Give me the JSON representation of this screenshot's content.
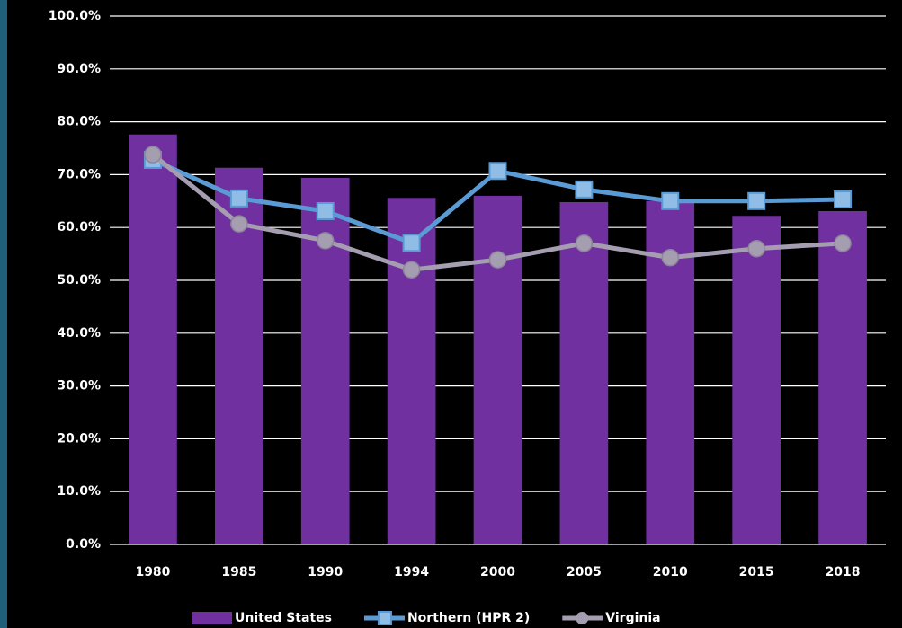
{
  "chart_data": {
    "type": "bar",
    "categories": [
      "1980",
      "1985",
      "1990",
      "1994",
      "2000",
      "2005",
      "2010",
      "2015",
      "2018"
    ],
    "series": [
      {
        "name": "United States",
        "type": "bar",
        "color": "#7030a0",
        "values": [
          77.6,
          71.3,
          69.4,
          65.6,
          66.0,
          64.8,
          65.0,
          62.2,
          63.1
        ]
      },
      {
        "name": "Northern (HPR 2)",
        "type": "line",
        "marker": "square",
        "color": "#5b9bd5",
        "values": [
          72.8,
          65.5,
          63.1,
          57.1,
          70.7,
          67.2,
          65.0,
          65.0,
          65.3
        ]
      },
      {
        "name": "Virginia",
        "type": "line",
        "marker": "circle",
        "color": "#a59db0",
        "values": [
          73.8,
          60.7,
          57.5,
          52.0,
          53.9,
          57.0,
          54.3,
          56.0,
          57.0
        ]
      }
    ],
    "ylim": [
      0,
      100
    ],
    "yticks": [
      {
        "value": 0,
        "label": "0.0%"
      },
      {
        "value": 10,
        "label": "10.0%"
      },
      {
        "value": 20,
        "label": "20.0%"
      },
      {
        "value": 30,
        "label": "30.0%"
      },
      {
        "value": 40,
        "label": "40.0%"
      },
      {
        "value": 50,
        "label": "50.0%"
      },
      {
        "value": 60,
        "label": "60.0%"
      },
      {
        "value": 70,
        "label": "70.0%"
      },
      {
        "value": 80,
        "label": "80.0%"
      },
      {
        "value": 90,
        "label": "90.0%"
      },
      {
        "value": 100,
        "label": "100.0%"
      }
    ],
    "grid": true,
    "legend": "bottom"
  }
}
